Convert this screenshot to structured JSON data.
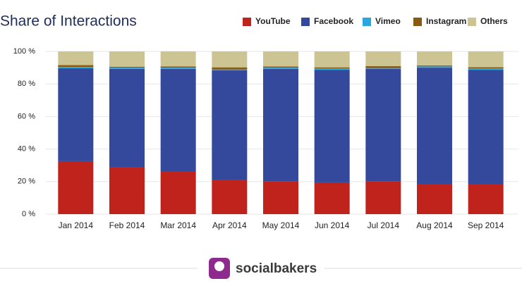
{
  "chart_data": {
    "type": "stacked_bar",
    "title": "Share of Interactions",
    "categories": [
      "Jan 2014",
      "Feb 2014",
      "Mar 2014",
      "Apr 2014",
      "May 2014",
      "Jun 2014",
      "Jul 2014",
      "Aug 2014",
      "Sep 2014"
    ],
    "series": [
      {
        "name": "YouTube",
        "color": "#c0231b",
        "values": [
          32.5,
          28.6,
          26.4,
          20.8,
          20.3,
          19.5,
          20.3,
          18.2,
          18.2
        ]
      },
      {
        "name": "Facebook",
        "color": "#34489c",
        "values": [
          57.1,
          60.6,
          62.8,
          67.5,
          68.9,
          69.2,
          68.9,
          71.8,
          70.5
        ]
      },
      {
        "name": "Vimeo",
        "color": "#2ba6de",
        "values": [
          0.8,
          0.8,
          0.8,
          0.6,
          0.8,
          0.8,
          0.6,
          0.8,
          0.8
        ]
      },
      {
        "name": "Instagram",
        "color": "#8a5a12",
        "values": [
          1.2,
          0.6,
          0.8,
          1.3,
          0.7,
          0.7,
          1.2,
          0.6,
          0.8
        ]
      },
      {
        "name": "Others",
        "color": "#cdc493",
        "values": [
          8.4,
          9.4,
          9.2,
          9.8,
          9.3,
          9.8,
          9.0,
          8.6,
          9.7
        ]
      }
    ],
    "ylim": [
      0,
      100
    ],
    "yticks": [
      {
        "value": 0,
        "label": "0 %"
      },
      {
        "value": 20,
        "label": "20 %"
      },
      {
        "value": 40,
        "label": "40 %"
      },
      {
        "value": 60,
        "label": "60 %"
      },
      {
        "value": 80,
        "label": "80 %"
      },
      {
        "value": 100,
        "label": "100 %"
      }
    ],
    "grid": true
  },
  "footer": {
    "brand": "socialbakers"
  }
}
